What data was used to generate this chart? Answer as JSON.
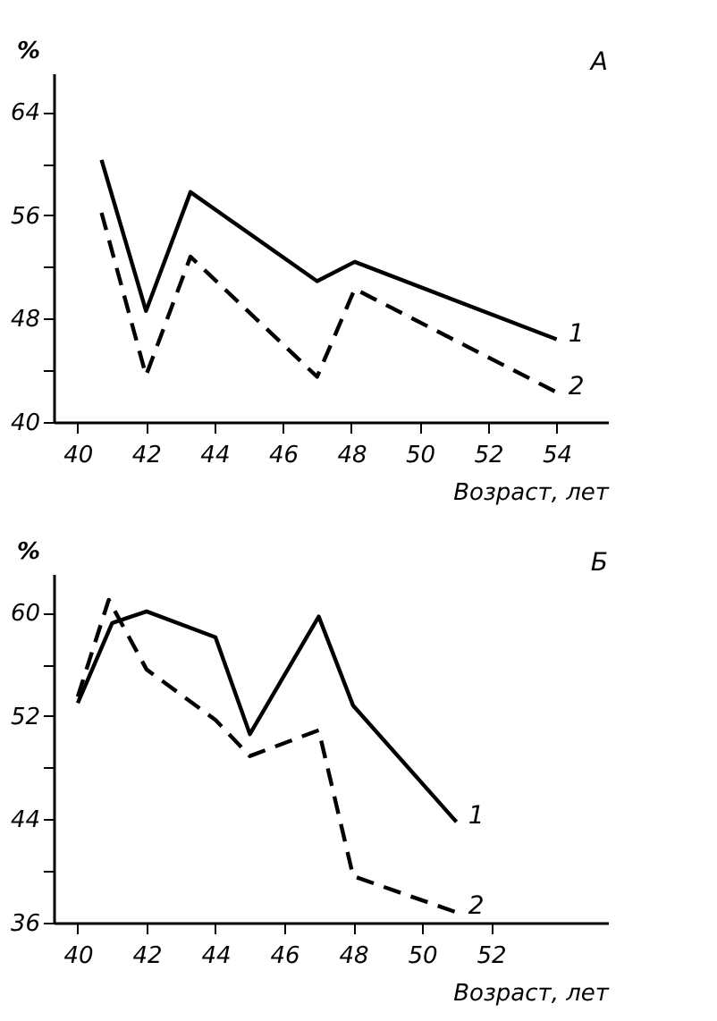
{
  "chart_data": [
    {
      "type": "line",
      "title": "А",
      "xlabel": "Возраст, лет",
      "ylabel": "%",
      "xlim": [
        39.3,
        55.5
      ],
      "ylim": [
        40,
        67
      ],
      "xticks": [
        40,
        42,
        44,
        46,
        48,
        50,
        52,
        54
      ],
      "yticks": [
        40,
        {
          "value": 44,
          "label": null
        },
        48,
        {
          "value": 52,
          "label": null
        },
        56,
        {
          "value": 60,
          "label": null
        },
        64
      ],
      "grid": false,
      "marker": "none",
      "series": [
        {
          "name": "1",
          "color": "#000000",
          "line_style": "solid",
          "x": [
            40.7,
            42,
            43.3,
            47,
            48.1,
            54
          ],
          "values": [
            60.3,
            48.6,
            57.8,
            50.9,
            52.4,
            46.4
          ]
        },
        {
          "name": "2",
          "color": "#000000",
          "line_style": "dashed",
          "x": [
            40.7,
            42,
            43.3,
            47,
            48.1,
            54
          ],
          "values": [
            56.2,
            43.6,
            52.8,
            43.5,
            50.3,
            42.3
          ]
        }
      ]
    },
    {
      "type": "line",
      "title": "Б",
      "xlabel": "Возраст, лет",
      "ylabel": "%",
      "xlim": [
        39.3,
        55.4
      ],
      "ylim": [
        36,
        63
      ],
      "xticks": [
        40,
        42,
        44,
        46,
        48,
        50,
        52
      ],
      "yticks": [
        36,
        {
          "value": 40,
          "label": null
        },
        44,
        {
          "value": 48,
          "label": null
        },
        52,
        {
          "value": 56,
          "label": null
        },
        60
      ],
      "grid": false,
      "marker": "none",
      "series": [
        {
          "name": "1",
          "color": "#000000",
          "line_style": "solid",
          "x": [
            40,
            41,
            42,
            44,
            45,
            47,
            48,
            51
          ],
          "values": [
            53.0,
            59.2,
            60.1,
            58.1,
            50.6,
            59.7,
            52.8,
            43.8
          ]
        },
        {
          "name": "2",
          "color": "#000000",
          "line_style": "dashed",
          "x": [
            40,
            40.9,
            42,
            44,
            45,
            47,
            48,
            51
          ],
          "values": [
            53.5,
            61.0,
            55.6,
            51.7,
            48.9,
            50.9,
            39.6,
            36.8
          ]
        }
      ]
    }
  ]
}
